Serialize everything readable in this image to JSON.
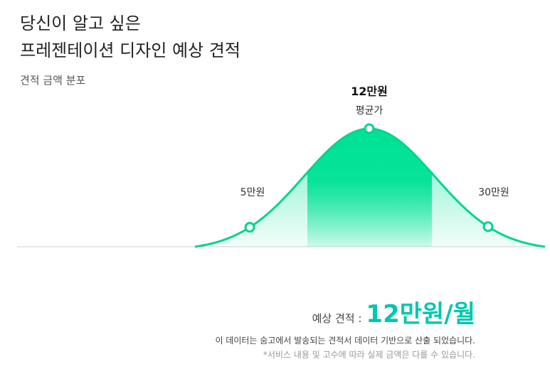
{
  "header": {
    "title_line1": "당신이 알고 싶은",
    "title_line2": "프레젠테이션 디자인 예상 견적"
  },
  "chart_data": {
    "type": "area",
    "title": "견적 금액 분포",
    "unit": "만원",
    "markers": [
      {
        "value": 5,
        "label": "5만원"
      },
      {
        "value": 12,
        "label": "12만원",
        "caption": "평균가"
      },
      {
        "value": 30,
        "label": "30만원"
      }
    ],
    "highlight_range_label": "평균가",
    "curve": "bell",
    "colors": {
      "primary": "#00e296",
      "line": "#00d68a",
      "accent_text": "#00c7ae"
    }
  },
  "estimate": {
    "label": "예상 견적 :",
    "value": "12만원/월"
  },
  "notes": {
    "line1": "이 데이터는 숨고에서 발송되는 견적서 데이터 기반으로 산출 되었습니다.",
    "line2": "*서비스 내용 및 고수에 따라 실제 금액은 다를 수 있습니다."
  }
}
